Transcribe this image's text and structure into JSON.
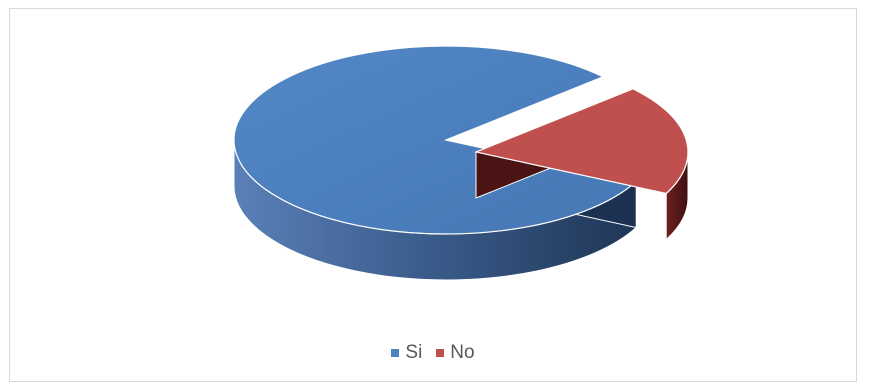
{
  "chart_data": {
    "type": "pie",
    "style": "3d-exploded",
    "categories": [
      "Si",
      "No"
    ],
    "values": [
      81,
      19
    ],
    "colors": [
      "#4f81bd",
      "#c0504d"
    ],
    "legend_position": "bottom"
  }
}
